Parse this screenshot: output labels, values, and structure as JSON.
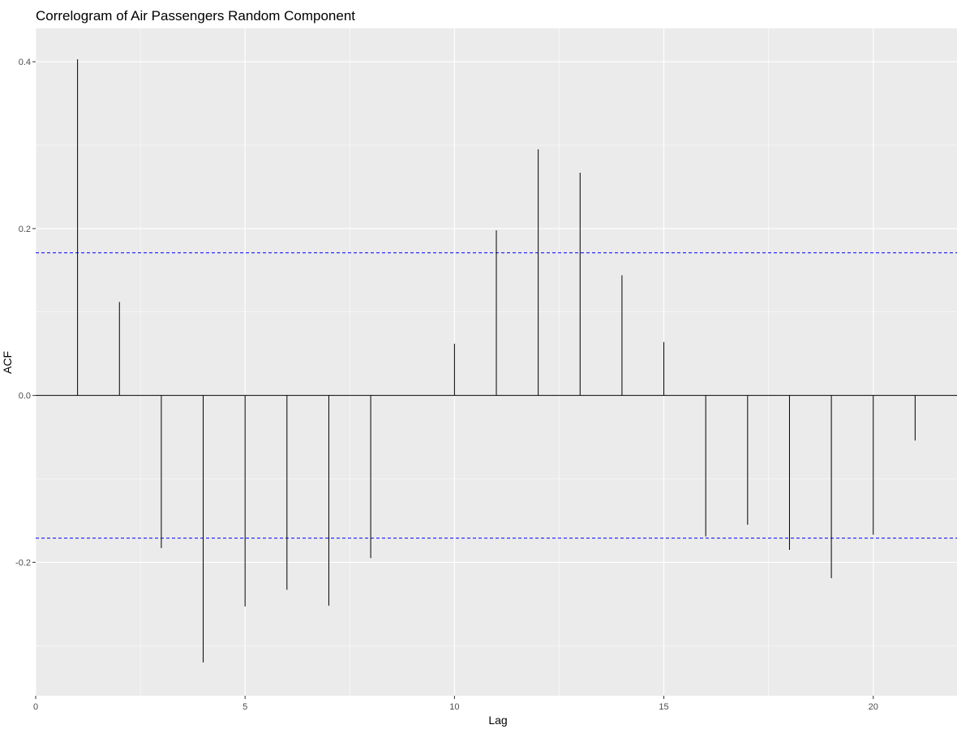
{
  "chart_data": {
    "type": "bar",
    "subtype": "acf-correlogram",
    "title": "Correlogram of Air Passengers Random Component",
    "xlabel": "Lag",
    "ylabel": "ACF",
    "xlim": [
      0,
      22
    ],
    "ylim": [
      -0.36,
      0.44
    ],
    "x_ticks": [
      0,
      5,
      10,
      15,
      20
    ],
    "x_tick_labels": [
      "0",
      "5",
      "10",
      "15",
      "20"
    ],
    "y_ticks": [
      -0.2,
      0.0,
      0.2,
      0.4
    ],
    "y_tick_labels": [
      "-0.2",
      "0.0",
      "0.2",
      "0.4"
    ],
    "grid": true,
    "lags": [
      1,
      2,
      3,
      4,
      5,
      6,
      7,
      8,
      10,
      11,
      12,
      13,
      14,
      15,
      16,
      17,
      18,
      19,
      20,
      21
    ],
    "values": [
      0.403,
      0.112,
      -0.183,
      -0.32,
      -0.253,
      -0.233,
      -0.252,
      -0.195,
      0.062,
      0.198,
      0.295,
      0.267,
      0.144,
      0.064,
      -0.169,
      -0.155,
      -0.185,
      -0.219,
      -0.167,
      -0.054
    ],
    "confidence_bound": 0.171,
    "colors": {
      "panel": "#ebebeb",
      "grid": "#ffffff",
      "stem": "#000000",
      "zero_line": "#000000",
      "ci_line": "#0000ff"
    }
  }
}
